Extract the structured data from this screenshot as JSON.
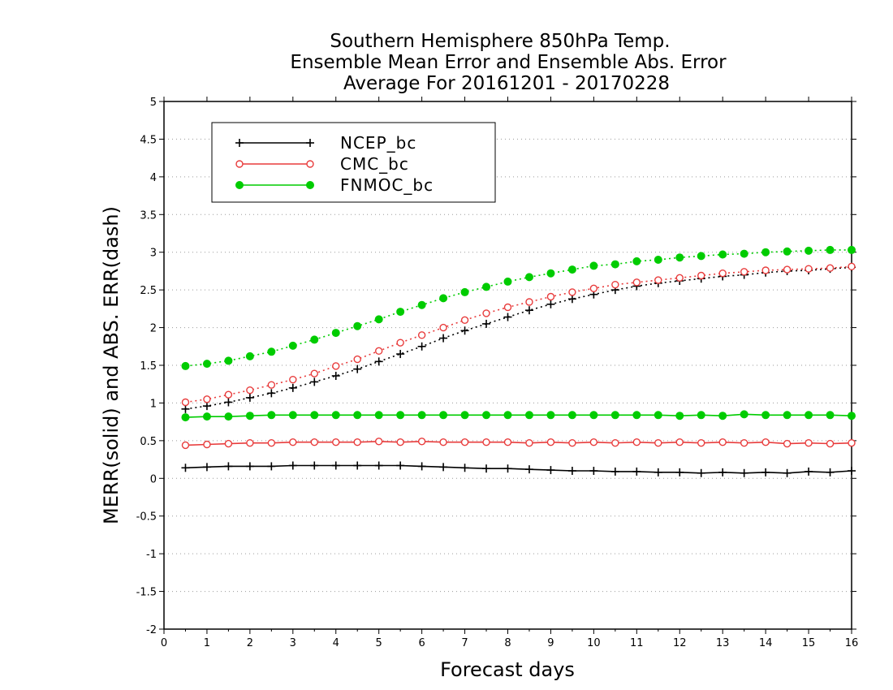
{
  "chart_data": {
    "type": "line",
    "title_lines": [
      "Southern Hemisphere 850hPa Temp.",
      "Ensemble Mean Error and Ensemble Abs. Error",
      "Average For 20161201 - 20170228"
    ],
    "xlabel": "Forecast days",
    "ylabel": "MERR(solid) and ABS. ERR(dash)",
    "xlim": [
      0,
      16
    ],
    "ylim": [
      -2,
      5
    ],
    "x_ticks": [
      0,
      1,
      2,
      3,
      4,
      5,
      6,
      7,
      8,
      9,
      10,
      11,
      12,
      13,
      14,
      15,
      16
    ],
    "x_tick_labels": [
      "0",
      "1",
      "2",
      "3",
      "4",
      "5",
      "6",
      "7",
      "8",
      "9",
      "10",
      "11",
      "12",
      "13",
      "14",
      "15",
      "16"
    ],
    "y_ticks": [
      -2,
      -1.5,
      -1,
      -0.5,
      0,
      0.5,
      1,
      1.5,
      2,
      2.5,
      3,
      3.5,
      4,
      4.5,
      5
    ],
    "y_tick_labels": [
      "-2",
      "-1.5",
      "-1",
      "-0.5",
      "0",
      "0.5",
      "1",
      "1.5",
      "2",
      "2.5",
      "3",
      "3.5",
      "4",
      "4.5",
      "5"
    ],
    "grid": "horizontal dotted",
    "legend_position": "top-left",
    "x": [
      0.5,
      1,
      1.5,
      2,
      2.5,
      3,
      3.5,
      4,
      4.5,
      5,
      5.5,
      6,
      6.5,
      7,
      7.5,
      8,
      8.5,
      9,
      9.5,
      10,
      10.5,
      11,
      11.5,
      12,
      12.5,
      13,
      13.5,
      14,
      14.5,
      15,
      15.5,
      16
    ],
    "series": [
      {
        "name": "NCEP_bc",
        "color": "#000000",
        "marker": "plus",
        "mean_error": [
          0.14,
          0.15,
          0.16,
          0.16,
          0.16,
          0.17,
          0.17,
          0.17,
          0.17,
          0.17,
          0.17,
          0.16,
          0.15,
          0.14,
          0.13,
          0.13,
          0.12,
          0.11,
          0.1,
          0.1,
          0.09,
          0.09,
          0.08,
          0.08,
          0.07,
          0.08,
          0.07,
          0.08,
          0.07,
          0.09,
          0.08,
          0.1
        ],
        "abs_error": [
          0.92,
          0.96,
          1.01,
          1.07,
          1.13,
          1.2,
          1.28,
          1.36,
          1.45,
          1.55,
          1.65,
          1.75,
          1.86,
          1.96,
          2.05,
          2.14,
          2.23,
          2.31,
          2.38,
          2.44,
          2.5,
          2.55,
          2.59,
          2.62,
          2.65,
          2.68,
          2.7,
          2.73,
          2.75,
          2.76,
          2.78,
          2.8
        ]
      },
      {
        "name": "CMC_bc",
        "color": "#e83c3c",
        "marker": "open-circle",
        "mean_error": [
          0.44,
          0.45,
          0.46,
          0.47,
          0.47,
          0.48,
          0.48,
          0.48,
          0.48,
          0.49,
          0.48,
          0.49,
          0.48,
          0.48,
          0.48,
          0.48,
          0.47,
          0.48,
          0.47,
          0.48,
          0.47,
          0.48,
          0.47,
          0.48,
          0.47,
          0.48,
          0.47,
          0.48,
          0.46,
          0.47,
          0.46,
          0.47
        ],
        "abs_error": [
          1.01,
          1.05,
          1.11,
          1.17,
          1.24,
          1.31,
          1.39,
          1.49,
          1.58,
          1.69,
          1.8,
          1.9,
          2.0,
          2.1,
          2.19,
          2.27,
          2.34,
          2.41,
          2.47,
          2.52,
          2.57,
          2.6,
          2.63,
          2.66,
          2.69,
          2.72,
          2.74,
          2.76,
          2.77,
          2.78,
          2.79,
          2.81
        ]
      },
      {
        "name": "FNMOC_bc",
        "color": "#00cc00",
        "marker": "filled-circle",
        "mean_error": [
          0.81,
          0.82,
          0.82,
          0.83,
          0.84,
          0.84,
          0.84,
          0.84,
          0.84,
          0.84,
          0.84,
          0.84,
          0.84,
          0.84,
          0.84,
          0.84,
          0.84,
          0.84,
          0.84,
          0.84,
          0.84,
          0.84,
          0.84,
          0.83,
          0.84,
          0.83,
          0.85,
          0.84,
          0.84,
          0.84,
          0.84,
          0.83
        ],
        "abs_error": [
          1.49,
          1.52,
          1.56,
          1.62,
          1.68,
          1.76,
          1.84,
          1.93,
          2.02,
          2.11,
          2.21,
          2.3,
          2.39,
          2.47,
          2.54,
          2.61,
          2.67,
          2.72,
          2.77,
          2.82,
          2.84,
          2.88,
          2.9,
          2.93,
          2.95,
          2.97,
          2.98,
          3.0,
          3.01,
          3.02,
          3.03,
          3.03
        ]
      }
    ]
  }
}
